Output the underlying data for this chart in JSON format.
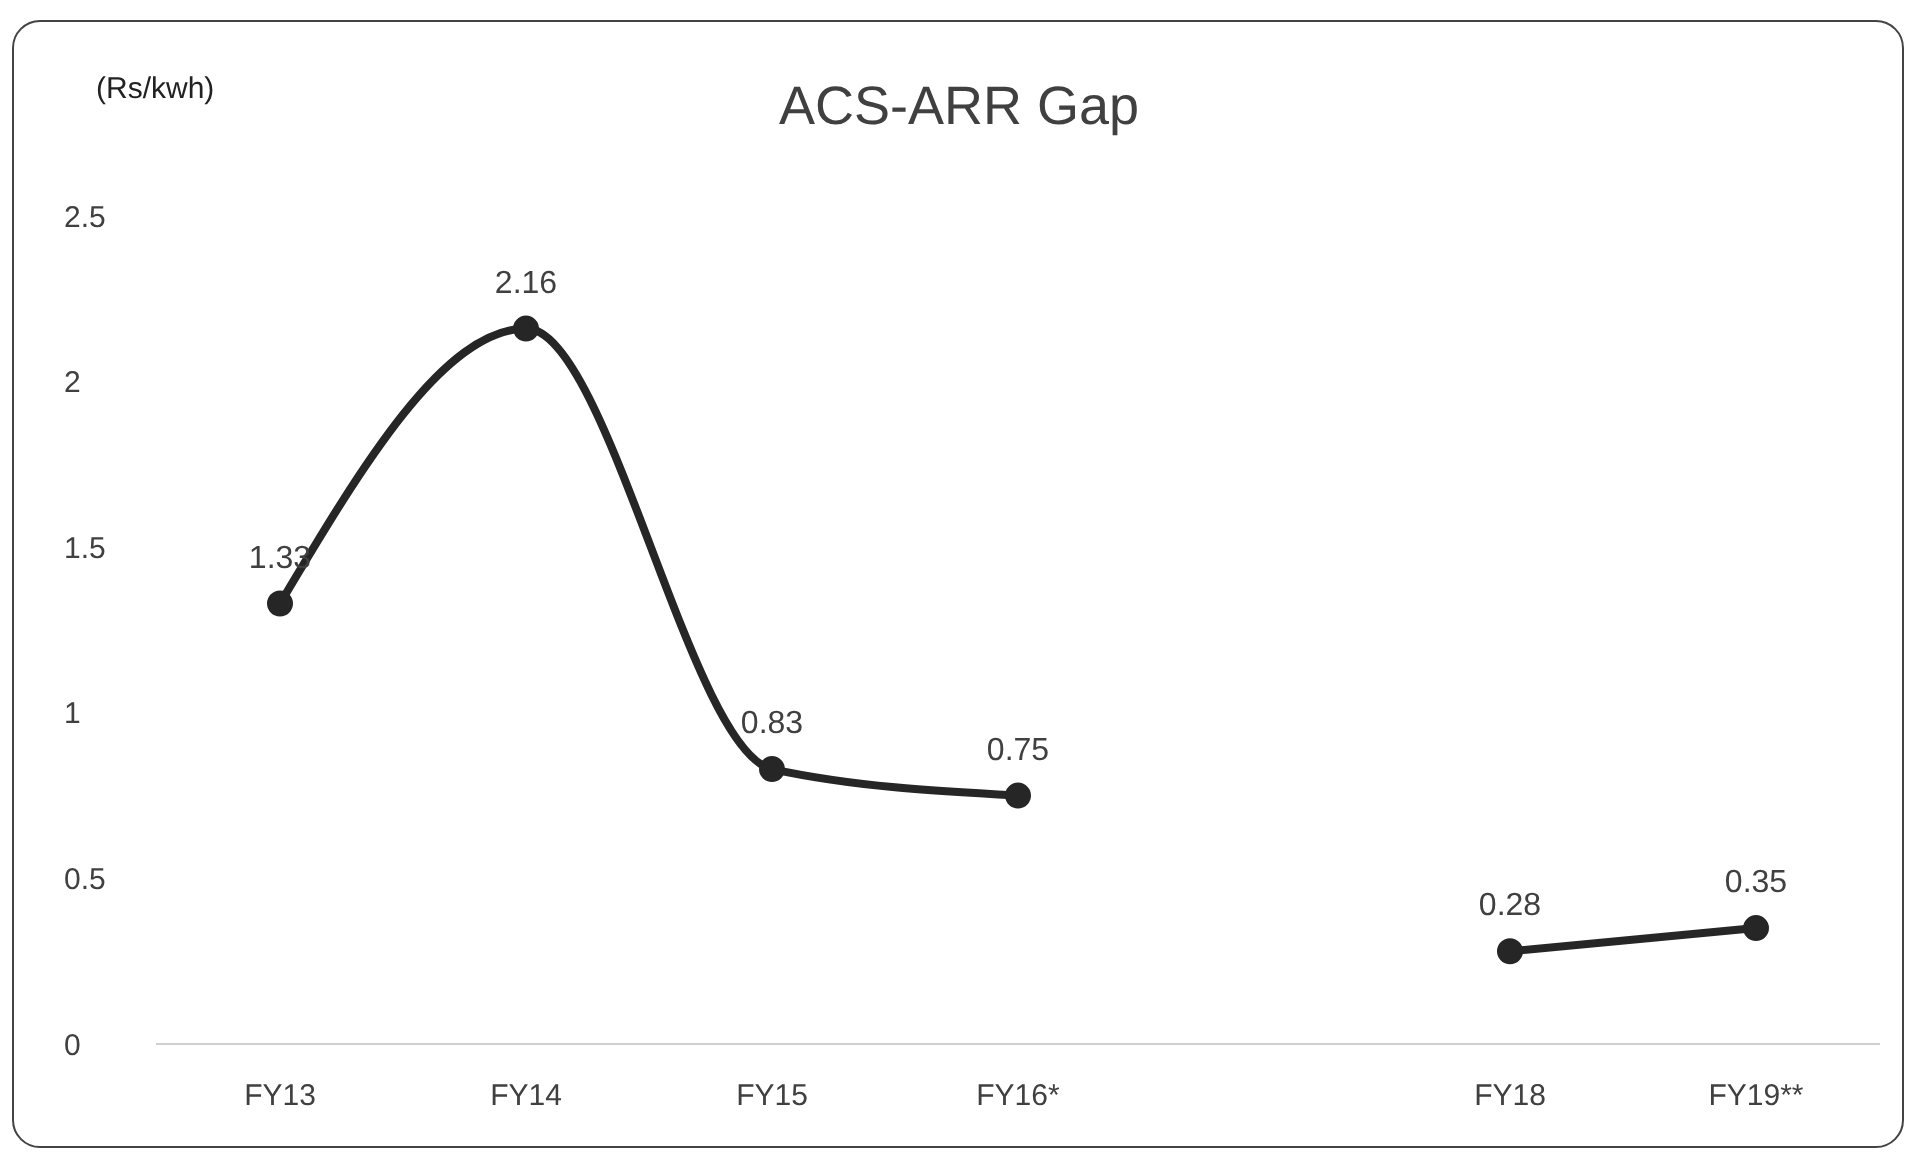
{
  "chart_data": {
    "type": "line",
    "title": "ACS-ARR Gap",
    "ylabel": "(Rs/kwh)",
    "categories": [
      "FY13",
      "FY14",
      "FY15",
      "FY16*",
      null,
      "FY18",
      "FY19**"
    ],
    "values": [
      1.33,
      2.16,
      0.83,
      0.75,
      null,
      0.28,
      0.35
    ],
    "color": "#262626",
    "ylim": [
      0,
      2.5
    ],
    "yticks": [
      0,
      0.5,
      1,
      1.5,
      2,
      2.5
    ],
    "data_labels": true,
    "marker": "circle",
    "line_style": "solid"
  }
}
